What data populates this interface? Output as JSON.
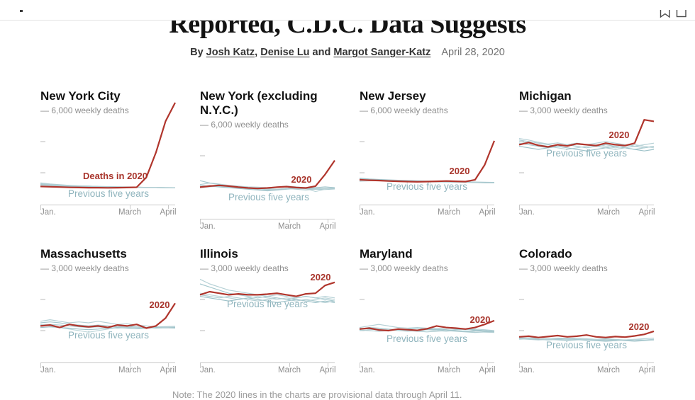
{
  "chrome": {
    "icons": [
      {
        "name": "bookmark-icon"
      },
      {
        "name": "window-icon"
      }
    ]
  },
  "header": {
    "title": "Reported, C.D.C. Data Suggests",
    "byline_prefix": "By",
    "authors": [
      "Josh Katz",
      "Denise Lu",
      "Margot Sanger-Katz"
    ],
    "date": "April 28, 2020"
  },
  "note": "Note: The 2020 lines in the charts are provisional data through April 11.",
  "colors": {
    "ink": "#121212",
    "accent_red": "#b0352c",
    "label_red": "#a8342b",
    "label_blue": "#8fb4bd",
    "axis_gray": "#c9c9c9",
    "text_gray": "#8f8f8f",
    "prev_palette": [
      "#b6d1d6",
      "#a7c9cf",
      "#bdd6da",
      "#9ec2c9",
      "#b0cdd2"
    ]
  },
  "axis": {
    "months": [
      {
        "label": "Jan.",
        "x": 0
      },
      {
        "label": "March",
        "x": 126
      },
      {
        "label": "April",
        "x": 180
      }
    ]
  },
  "chart_data": [
    {
      "type": "line",
      "slug": "new-york-city",
      "title": "New York City",
      "unit_label": "— 6,000 weekly deaths",
      "y_max": 6000,
      "y_ticks": [
        4000,
        2000
      ],
      "x_tick_labels": [
        "Jan.",
        "March",
        "April"
      ],
      "x_range": "Jan. 4 to April 11, weekly",
      "series_2020": [
        1120,
        1100,
        1080,
        1060,
        1050,
        1040,
        1040,
        1030,
        1040,
        1050,
        1070,
        1700,
        3300,
        5300,
        6500
      ],
      "prev_years": [
        [
          1300,
          1250,
          1200,
          1180,
          1150,
          1130,
          1120,
          1100,
          1090,
          1080,
          1070,
          1060,
          1050,
          1040,
          1030
        ],
        [
          1250,
          1220,
          1190,
          1170,
          1150,
          1140,
          1120,
          1110,
          1100,
          1090,
          1080,
          1060,
          1050,
          1040,
          1040
        ],
        [
          1200,
          1180,
          1160,
          1150,
          1140,
          1120,
          1110,
          1100,
          1090,
          1080,
          1070,
          1060,
          1050,
          1050,
          1040
        ],
        [
          1150,
          1140,
          1130,
          1120,
          1110,
          1100,
          1100,
          1090,
          1080,
          1070,
          1060,
          1050,
          1050,
          1040,
          1030
        ],
        [
          1350,
          1280,
          1230,
          1190,
          1160,
          1140,
          1120,
          1110,
          1090,
          1080,
          1070,
          1060,
          1050,
          1040,
          1030
        ]
      ],
      "label_2020": {
        "text": "Deaths in 2020",
        "x": 151,
        "y": 97,
        "anchor": "end"
      },
      "label_prev": {
        "text": "Previous five years",
        "x": 96,
        "y": 122
      }
    },
    {
      "type": "line",
      "slug": "new-york-excluding-nyc",
      "title": "New York (excluding N.Y.C.)",
      "unit_label": "— 6,000 weekly deaths",
      "y_max": 6000,
      "y_ticks": [
        4000,
        2000
      ],
      "x_tick_labels": [
        "Jan.",
        "March",
        "April"
      ],
      "x_range": "Jan. 4 to April 11, weekly",
      "series_2020": [
        1980,
        2050,
        2100,
        2050,
        1980,
        1930,
        1900,
        1930,
        1980,
        2020,
        1960,
        1930,
        2050,
        2800,
        3700
      ],
      "prev_years": [
        [
          2150,
          2250,
          2180,
          2100,
          2050,
          2000,
          1980,
          1950,
          2000,
          2050,
          2000,
          1950,
          1900,
          1880,
          1900
        ],
        [
          2400,
          2250,
          2150,
          2050,
          2000,
          1950,
          1900,
          1850,
          1800,
          1850,
          1900,
          1880,
          1850,
          1830,
          1870
        ],
        [
          1950,
          2000,
          2050,
          2000,
          1950,
          1900,
          1850,
          1800,
          1850,
          1900,
          1950,
          1900,
          1700,
          1850,
          1950
        ],
        [
          2100,
          2050,
          2000,
          1950,
          1900,
          1850,
          1800,
          1750,
          1800,
          1900,
          1950,
          1900,
          1950,
          2000,
          1950
        ],
        [
          2000,
          2100,
          2050,
          2000,
          1950,
          1900,
          1950,
          1900,
          1850,
          1900,
          1850,
          1800,
          1850,
          1900,
          1880
        ]
      ],
      "label_2020": {
        "text": "2020",
        "x": 143,
        "y": 82,
        "anchor": "middle"
      },
      "label_prev": {
        "text": "Previous five years",
        "x": 97,
        "y": 107
      }
    },
    {
      "type": "line",
      "slug": "new-jersey",
      "title": "New Jersey",
      "unit_label": "— 6,000 weekly deaths",
      "y_max": 6000,
      "y_ticks": [
        4000,
        2000
      ],
      "x_tick_labels": [
        "Jan.",
        "March",
        "April"
      ],
      "x_range": "Jan. 4 to April 11, weekly",
      "series_2020": [
        1550,
        1520,
        1500,
        1470,
        1450,
        1430,
        1420,
        1430,
        1450,
        1470,
        1450,
        1430,
        1550,
        2500,
        4050
      ],
      "prev_years": [
        [
          1600,
          1580,
          1550,
          1520,
          1500,
          1480,
          1460,
          1450,
          1440,
          1430,
          1420,
          1410,
          1400,
          1390,
          1380
        ],
        [
          1500,
          1550,
          1530,
          1500,
          1480,
          1460,
          1450,
          1440,
          1430,
          1420,
          1410,
          1400,
          1380,
          1370,
          1380
        ],
        [
          1450,
          1480,
          1500,
          1480,
          1460,
          1450,
          1430,
          1420,
          1410,
          1400,
          1390,
          1380,
          1370,
          1360,
          1370
        ],
        [
          1650,
          1600,
          1570,
          1540,
          1520,
          1500,
          1480,
          1460,
          1450,
          1430,
          1420,
          1400,
          1390,
          1380,
          1370
        ],
        [
          1550,
          1530,
          1510,
          1490,
          1470,
          1460,
          1440,
          1430,
          1420,
          1410,
          1400,
          1390,
          1380,
          1360,
          1350
        ]
      ],
      "label_2020": {
        "text": "2020",
        "x": 141,
        "y": 90,
        "anchor": "middle"
      },
      "label_prev": {
        "text": "Previous five years",
        "x": 95,
        "y": 112
      }
    },
    {
      "type": "line",
      "slug": "michigan",
      "title": "Michigan",
      "unit_label": "— 3,000 weekly deaths",
      "y_max": 3000,
      "y_ticks": [
        2000,
        1000
      ],
      "x_tick_labels": [
        "Jan.",
        "March",
        "April"
      ],
      "x_range": "Jan. 4 to April 11, weekly",
      "series_2020": [
        1900,
        1970,
        1880,
        1830,
        1900,
        1860,
        1930,
        1900,
        1870,
        1950,
        1900,
        1870,
        1950,
        2700,
        2650
      ],
      "prev_years": [
        [
          2100,
          2050,
          1980,
          1920,
          1960,
          1900,
          1950,
          1900,
          1950,
          2000,
          1950,
          1900,
          1850,
          1900,
          1950
        ],
        [
          1950,
          1900,
          1850,
          1800,
          1850,
          1900,
          1850,
          1800,
          1850,
          1900,
          1850,
          1800,
          1750,
          1800,
          1850
        ],
        [
          2000,
          1950,
          1900,
          1850,
          1800,
          1750,
          1800,
          1850,
          1900,
          1850,
          1800,
          1850,
          1900,
          1850,
          1800
        ],
        [
          1850,
          1800,
          1750,
          1800,
          1850,
          1800,
          1750,
          1700,
          1750,
          1800,
          1850,
          1800,
          1750,
          1700,
          1750
        ],
        [
          2050,
          2000,
          1950,
          1900,
          1850,
          1900,
          1950,
          1900,
          1850,
          1800,
          1750,
          1800,
          1850,
          1800,
          1850
        ]
      ],
      "label_2020": {
        "text": "2020",
        "x": 141,
        "y": 39,
        "anchor": "middle"
      },
      "label_prev": {
        "text": "Previous five years",
        "x": 95,
        "y": 65
      }
    },
    {
      "type": "line",
      "slug": "massachusetts",
      "title": "Massachusetts",
      "unit_label": "— 3,000 weekly deaths",
      "y_max": 3000,
      "y_ticks": [
        2000,
        1000
      ],
      "x_tick_labels": [
        "Jan.",
        "March",
        "April"
      ],
      "x_range": "Jan. 4 to April 11, weekly",
      "series_2020": [
        1150,
        1180,
        1100,
        1200,
        1150,
        1120,
        1150,
        1100,
        1180,
        1150,
        1200,
        1080,
        1150,
        1400,
        1880
      ],
      "prev_years": [
        [
          1300,
          1350,
          1300,
          1250,
          1280,
          1250,
          1300,
          1250,
          1200,
          1220,
          1180,
          1150,
          1120,
          1130,
          1140
        ],
        [
          1250,
          1280,
          1250,
          1200,
          1180,
          1150,
          1180,
          1150,
          1120,
          1150,
          1120,
          1100,
          1110,
          1120,
          1110
        ],
        [
          1200,
          1150,
          1100,
          1050,
          1000,
          950,
          1000,
          1050,
          1100,
          1120,
          1100,
          1080,
          1100,
          1110,
          1120
        ],
        [
          1100,
          1120,
          1100,
          1080,
          1050,
          1030,
          1050,
          1080,
          1100,
          1080,
          1060,
          1080,
          1100,
          1090,
          1100
        ],
        [
          1180,
          1200,
          1180,
          1150,
          1120,
          1100,
          1120,
          1100,
          1080,
          1100,
          1120,
          1100,
          1080,
          1090,
          1080
        ]
      ],
      "label_2020": {
        "text": "2020",
        "x": 168,
        "y": 56,
        "anchor": "middle"
      },
      "label_prev": {
        "text": "Previous five years",
        "x": 96,
        "y": 99
      }
    },
    {
      "type": "line",
      "slug": "illinois",
      "title": "Illinois",
      "unit_label": "— 3,000 weekly deaths",
      "y_max": 3000,
      "y_ticks": [
        2000,
        1000
      ],
      "x_tick_labels": [
        "Jan.",
        "March",
        "April"
      ],
      "x_range": "Jan. 4 to April 11, weekly",
      "series_2020": [
        2150,
        2250,
        2200,
        2150,
        2180,
        2150,
        2150,
        2170,
        2200,
        2150,
        2100,
        2180,
        2200,
        2450,
        2550
      ],
      "prev_years": [
        [
          2650,
          2500,
          2400,
          2300,
          2250,
          2200,
          2150,
          2100,
          2150,
          2100,
          2050,
          2100,
          2050,
          2100,
          2050
        ],
        [
          2500,
          2400,
          2300,
          2200,
          2150,
          2100,
          2050,
          2100,
          2050,
          2000,
          2050,
          2100,
          2050,
          2000,
          1950
        ],
        [
          2200,
          2150,
          2100,
          2050,
          2000,
          2050,
          2100,
          2050,
          2000,
          2050,
          2000,
          1950,
          2000,
          2050,
          2000
        ],
        [
          2100,
          2050,
          2000,
          1950,
          2000,
          2050,
          2000,
          1950,
          1900,
          1950,
          2000,
          1950,
          1900,
          1950,
          1900
        ],
        [
          2150,
          2100,
          2050,
          2100,
          2050,
          2000,
          1950,
          2000,
          2050,
          2000,
          1950,
          2000,
          1950,
          1900,
          1950
        ]
      ],
      "label_2020": {
        "text": "2020",
        "x": 170,
        "y": 17,
        "anchor": "middle"
      },
      "label_prev": {
        "text": "Previous five years",
        "x": 95,
        "y": 55
      }
    },
    {
      "type": "line",
      "slug": "maryland",
      "title": "Maryland",
      "unit_label": "— 3,000 weekly deaths",
      "y_max": 3000,
      "y_ticks": [
        2000,
        1000
      ],
      "x_tick_labels": [
        "Jan.",
        "March",
        "April"
      ],
      "x_range": "Jan. 4 to April 11, weekly",
      "series_2020": [
        1050,
        1080,
        1020,
        1000,
        1050,
        1030,
        1010,
        1060,
        1150,
        1100,
        1080,
        1050,
        1100,
        1200,
        1320
      ],
      "prev_years": [
        [
          1100,
          1150,
          1200,
          1150,
          1100,
          1080,
          1100,
          1080,
          1060,
          1080,
          1050,
          1030,
          1050,
          1030,
          1000
        ],
        [
          1050,
          1100,
          1080,
          1050,
          1030,
          1050,
          1080,
          1050,
          1030,
          1000,
          1030,
          1050,
          1020,
          1000,
          980
        ],
        [
          1000,
          1030,
          1050,
          1030,
          1000,
          980,
          1000,
          1030,
          1000,
          980,
          1000,
          980,
          960,
          950,
          940
        ],
        [
          1080,
          1050,
          1030,
          1000,
          1050,
          1030,
          1000,
          1030,
          1050,
          1030,
          1000,
          980,
          1000,
          980,
          960
        ],
        [
          1020,
          1000,
          980,
          1000,
          1030,
          1000,
          980,
          960,
          980,
          1000,
          980,
          960,
          940,
          960,
          950
        ]
      ],
      "label_2020": {
        "text": "2020",
        "x": 170,
        "y": 77,
        "anchor": "middle"
      },
      "label_prev": {
        "text": "Previous five years",
        "x": 95,
        "y": 104
      }
    },
    {
      "type": "line",
      "slug": "colorado",
      "title": "Colorado",
      "unit_label": "— 3,000 weekly deaths",
      "y_max": 3000,
      "y_ticks": [
        2000,
        1000
      ],
      "x_tick_labels": [
        "Jan.",
        "March",
        "April"
      ],
      "x_range": "Jan. 4 to April 11, weekly",
      "series_2020": [
        800,
        820,
        780,
        810,
        840,
        800,
        820,
        860,
        800,
        780,
        810,
        790,
        830,
        880,
        980
      ],
      "prev_years": [
        [
          780,
          800,
          760,
          740,
          760,
          740,
          760,
          740,
          720,
          740,
          720,
          700,
          720,
          740,
          760
        ],
        [
          750,
          730,
          710,
          730,
          750,
          730,
          710,
          690,
          710,
          730,
          710,
          690,
          680,
          700,
          720
        ],
        [
          720,
          740,
          760,
          740,
          720,
          700,
          720,
          740,
          720,
          700,
          680,
          700,
          720,
          700,
          710
        ],
        [
          760,
          740,
          720,
          700,
          720,
          740,
          720,
          700,
          680,
          660,
          680,
          700,
          680,
          690,
          700
        ],
        [
          740,
          720,
          700,
          720,
          700,
          680,
          700,
          720,
          700,
          680,
          700,
          680,
          660,
          680,
          700
        ]
      ],
      "label_2020": {
        "text": "2020",
        "x": 169,
        "y": 87,
        "anchor": "middle"
      },
      "label_prev": {
        "text": "Previous five years",
        "x": 95,
        "y": 113
      }
    }
  ]
}
